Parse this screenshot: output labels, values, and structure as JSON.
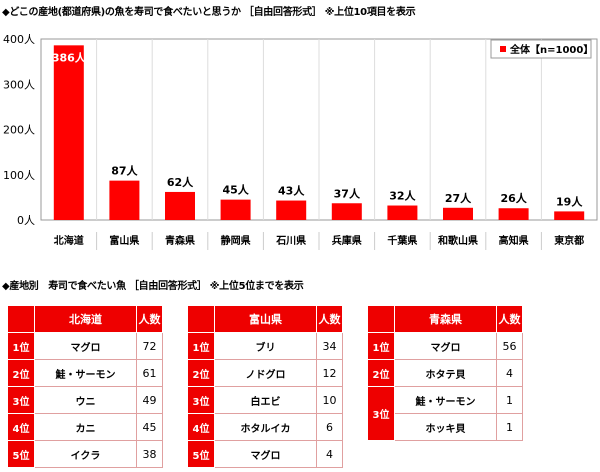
{
  "chart_title": "◆どこの産地(都道府県)の魚を寿司で食べたいと思うか ［自由回答形式］ ※上位10項目を表示",
  "chart_data": {
    "type": "bar",
    "categories": [
      "北海道",
      "富山県",
      "青森県",
      "静岡県",
      "石川県",
      "兵庫県",
      "千葉県",
      "和歌山県",
      "高知県",
      "東京都"
    ],
    "series": [
      {
        "name": "全体【n=1000】",
        "values": [
          386,
          87,
          62,
          45,
          43,
          37,
          32,
          27,
          26,
          19
        ]
      }
    ],
    "ylim": [
      0,
      400
    ],
    "yticks": [
      0,
      100,
      200,
      300,
      400
    ],
    "ytick_labels": [
      "0人",
      "100人",
      "200人",
      "300人",
      "400人"
    ],
    "value_suffix": "人",
    "legend": "top-right",
    "bar_color": "#ff0000",
    "grid": "vertical category separators"
  },
  "tables_title": "◆産地別　寿司で食べたい魚 ［自由回答形式］ ※上位5位までを表示",
  "tables": [
    {
      "region": "北海道",
      "count_header": "人数",
      "rows": [
        {
          "rank": "1位",
          "fish": "マグロ",
          "count": "72"
        },
        {
          "rank": "2位",
          "fish": "鮭・サーモン",
          "count": "61"
        },
        {
          "rank": "3位",
          "fish": "ウニ",
          "count": "49"
        },
        {
          "rank": "4位",
          "fish": "カニ",
          "count": "45"
        },
        {
          "rank": "5位",
          "fish": "イクラ",
          "count": "38"
        }
      ]
    },
    {
      "region": "富山県",
      "count_header": "人数",
      "rows": [
        {
          "rank": "1位",
          "fish": "ブリ",
          "count": "34"
        },
        {
          "rank": "2位",
          "fish": "ノドグロ",
          "count": "12"
        },
        {
          "rank": "3位",
          "fish": "白エビ",
          "count": "10"
        },
        {
          "rank": "4位",
          "fish": "ホタルイカ",
          "count": "6"
        },
        {
          "rank": "5位",
          "fish": "マグロ",
          "count": "4"
        }
      ]
    },
    {
      "region": "青森県",
      "count_header": "人数",
      "rows": [
        {
          "rank": "1位",
          "fish": "マグロ",
          "count": "56"
        },
        {
          "rank": "2位",
          "fish": "ホタテ貝",
          "count": "4"
        },
        {
          "rank": "3位",
          "fish": "鮭・サーモン",
          "count": "1"
        },
        {
          "rank": "3位",
          "fish": "ホッキ貝",
          "count": "1"
        }
      ]
    }
  ],
  "accent": "#ee0000"
}
